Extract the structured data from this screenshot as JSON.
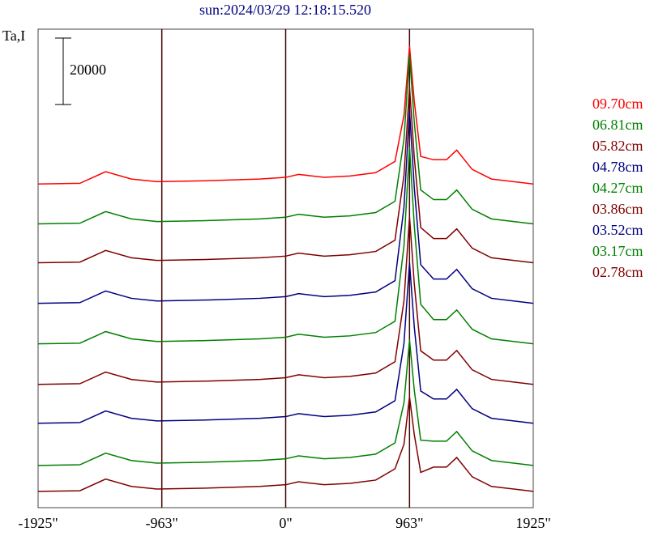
{
  "chart_data": {
    "type": "line",
    "title": "sun:2024/03/29 12:18:15.520",
    "y_label": "Ta,I",
    "x": [
      -1925,
      -1600,
      -1400,
      -1200,
      -1000,
      -600,
      -200,
      0,
      100,
      300,
      500,
      700,
      850,
      920,
      963,
      1000,
      1050,
      1150,
      1250,
      1330,
      1450,
      1600,
      1925
    ],
    "xlim": [
      -1925,
      1925
    ],
    "xticks": [
      {
        "value": -1925,
        "label": "-1925\""
      },
      {
        "value": -963,
        "label": "-963\""
      },
      {
        "value": 0,
        "label": "0\""
      },
      {
        "value": 963,
        "label": "963\""
      },
      {
        "value": 1925,
        "label": "1925\""
      }
    ],
    "ylim": [
      0,
      144000
    ],
    "scale_bar": 20000,
    "grid": true,
    "series": [
      {
        "name": "09.70cm",
        "color": "#ff0000",
        "values": [
          97400,
          97600,
          101100,
          98900,
          98100,
          98400,
          98900,
          99400,
          100300,
          99400,
          99800,
          100800,
          104200,
          118100,
          138900,
          122300,
          105700,
          104700,
          104700,
          107600,
          101800,
          98900,
          97400
        ]
      },
      {
        "name": "06.81cm",
        "color": "#008000",
        "values": [
          85400,
          85600,
          89100,
          86900,
          86100,
          86400,
          86900,
          87400,
          88300,
          87400,
          87800,
          88800,
          92200,
          110900,
          136400,
          116000,
          95600,
          92700,
          92700,
          95600,
          89800,
          86900,
          85400
        ]
      },
      {
        "name": "05.82cm",
        "color": "#800000",
        "values": [
          73700,
          73900,
          77400,
          75200,
          74400,
          74700,
          75200,
          75700,
          76600,
          75700,
          76100,
          77100,
          80500,
          100100,
          126600,
          105400,
          84300,
          81000,
          81000,
          83900,
          78100,
          75200,
          73700
        ]
      },
      {
        "name": "04.78cm",
        "color": "#000080",
        "values": [
          61500,
          61700,
          65200,
          63000,
          62200,
          62500,
          63000,
          63500,
          64400,
          63500,
          63900,
          64900,
          68300,
          90500,
          119600,
          96400,
          73100,
          68800,
          68800,
          71700,
          65900,
          63000,
          61500
        ]
      },
      {
        "name": "04.27cm",
        "color": "#008000",
        "values": [
          49300,
          49500,
          53000,
          50800,
          50000,
          50300,
          50800,
          51300,
          52200,
          51300,
          51700,
          52700,
          56100,
          78900,
          108600,
          84900,
          61200,
          56600,
          56600,
          59500,
          53700,
          50800,
          49300
        ]
      },
      {
        "name": "03.86cm",
        "color": "#800000",
        "values": [
          37100,
          37300,
          40800,
          38600,
          37800,
          38100,
          38600,
          39100,
          40000,
          39100,
          39500,
          40500,
          43900,
          62300,
          87600,
          67400,
          47200,
          44400,
          44400,
          47300,
          41500,
          38600,
          37100
        ]
      },
      {
        "name": "03.52cm",
        "color": "#000080",
        "values": [
          25400,
          25600,
          29100,
          26900,
          26100,
          26400,
          26900,
          27400,
          28300,
          27400,
          27800,
          28800,
          32200,
          49500,
          73700,
          54400,
          35100,
          32700,
          32700,
          35600,
          29800,
          26900,
          25400
        ]
      },
      {
        "name": "03.17cm",
        "color": "#008000",
        "values": [
          12700,
          12900,
          16400,
          14200,
          13400,
          13700,
          14200,
          14700,
          15600,
          14700,
          15100,
          16100,
          19500,
          31600,
          50500,
          35400,
          20300,
          20000,
          20000,
          22900,
          17100,
          14200,
          12700
        ]
      },
      {
        "name": "02.78cm",
        "color": "#800000",
        "values": [
          4900,
          5100,
          8600,
          6400,
          5600,
          5900,
          6400,
          6900,
          7800,
          6900,
          7300,
          8300,
          11700,
          19100,
          33400,
          22000,
          10600,
          12200,
          12200,
          15100,
          9300,
          6400,
          4900
        ]
      }
    ]
  }
}
